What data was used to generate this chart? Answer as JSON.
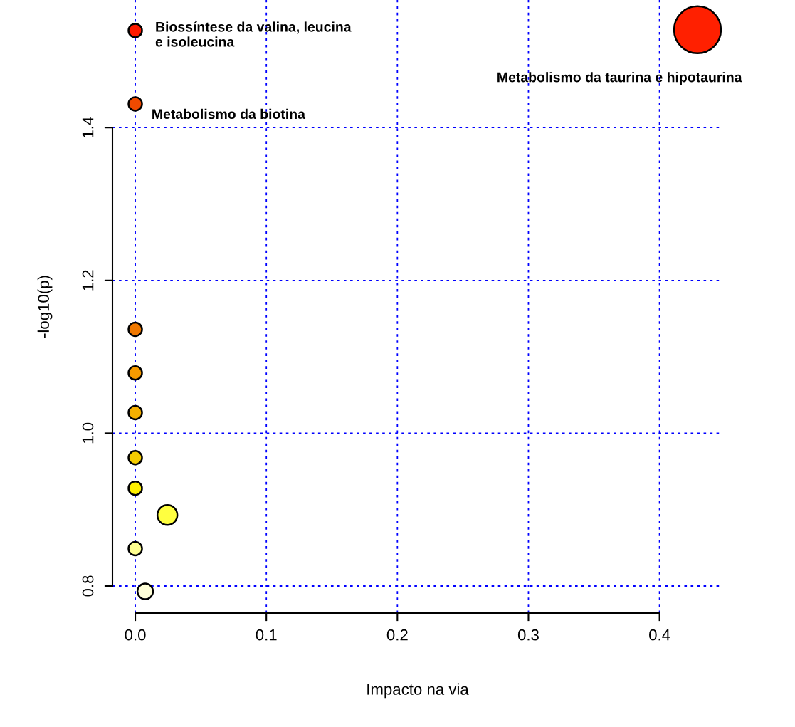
{
  "chart_data": {
    "type": "bubble",
    "xlabel": "Impacto na via",
    "ylabel": "-log10(p)",
    "x": [
      0,
      0,
      0,
      0,
      0,
      0,
      0,
      0.0245,
      0,
      0.0076,
      0.429
    ],
    "values": [
      1.527,
      1.431,
      1.136,
      1.079,
      1.027,
      0.968,
      0.928,
      0.893,
      0.849,
      0.793,
      1.528
    ],
    "sizes": [
      0.083,
      0.083,
      0.083,
      0.083,
      0.083,
      0.083,
      0.083,
      0.18,
      0.083,
      0.11,
      1
    ],
    "colors": [
      "#ff1a00",
      "#f04a00",
      "#f07800",
      "#f59a00",
      "#f5b000",
      "#f5cc00",
      "#fff000",
      "#ffff40",
      "#ffff90",
      "#ffffd8",
      "#ff2000"
    ],
    "xlim": [
      -0.0174,
      0.448
    ],
    "ylim": [
      0.7646,
      1.567
    ],
    "xticks": [
      {
        "value": 0,
        "label": "0.0"
      },
      0.1,
      0.2,
      0.3,
      0.4
    ],
    "yticks": [
      0.8,
      {
        "value": 1.0,
        "label": "1.0"
      },
      1.2,
      1.4
    ],
    "grid": true,
    "annotations": [
      "Biossíntese da valina, leucina\ne isoleucina",
      "Metabolismo da biotina",
      "Metabolismo da taurina e hipotaurina"
    ]
  }
}
